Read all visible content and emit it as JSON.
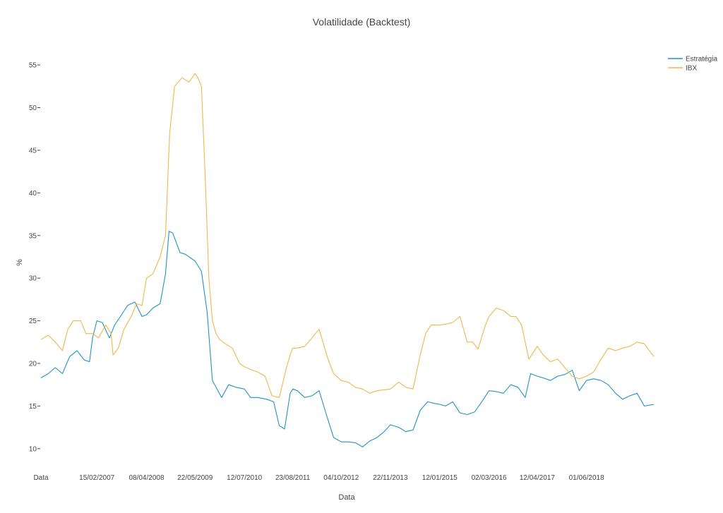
{
  "chart_data": {
    "type": "line",
    "title": "Volatilidade (Backtest)",
    "xlabel": "Data",
    "ylabel": "%",
    "ylim": [
      8,
      56
    ],
    "yticks": [
      10,
      15,
      20,
      25,
      30,
      35,
      40,
      45,
      50,
      55
    ],
    "ytick_labels": [
      "10",
      "15",
      "20",
      "25",
      "30",
      "35",
      "40",
      "45",
      "50",
      "55"
    ],
    "xlim": [
      "2005-11-01",
      "2019-12-20"
    ],
    "xticks": [
      "2005-11-01",
      "2007-02-15",
      "2008-04-08",
      "2009-05-22",
      "2010-07-12",
      "2011-08-23",
      "2012-10-04",
      "2013-11-22",
      "2015-01-12",
      "2016-03-02",
      "2017-04-12",
      "2018-06-01"
    ],
    "xtick_labels": [
      "Data",
      "15/02/2007",
      "08/04/2008",
      "22/05/2009",
      "12/07/2010",
      "23/08/2011",
      "04/10/2012",
      "22/11/2013",
      "12/01/2015",
      "02/03/2016",
      "12/04/2017",
      "01/06/2018"
    ],
    "legend_position": "top-right",
    "grid": false,
    "series": [
      {
        "name": "Estratégia",
        "color": "#1f94c4",
        "x": [
          "2005-11-01",
          "2006-01-01",
          "2006-03-01",
          "2006-05-01",
          "2006-07-01",
          "2006-09-01",
          "2006-11-01",
          "2006-12-15",
          "2007-01-10",
          "2007-02-15",
          "2007-04-01",
          "2007-06-01",
          "2007-07-15",
          "2007-09-01",
          "2007-11-01",
          "2008-01-01",
          "2008-03-01",
          "2008-04-08",
          "2008-06-01",
          "2008-08-01",
          "2008-09-15",
          "2008-10-15",
          "2008-11-15",
          "2009-01-15",
          "2009-03-01",
          "2009-05-22",
          "2009-07-15",
          "2009-09-01",
          "2009-10-15",
          "2009-11-15",
          "2010-01-01",
          "2010-03-01",
          "2010-05-01",
          "2010-07-12",
          "2010-09-01",
          "2010-11-01",
          "2011-01-15",
          "2011-03-15",
          "2011-05-01",
          "2011-06-15",
          "2011-08-01",
          "2011-08-23",
          "2011-10-01",
          "2011-12-01",
          "2012-02-01",
          "2012-04-01",
          "2012-06-01",
          "2012-08-01",
          "2012-10-04",
          "2012-12-01",
          "2013-02-01",
          "2013-04-01",
          "2013-06-01",
          "2013-08-01",
          "2013-10-01",
          "2013-11-22",
          "2014-02-01",
          "2014-04-01",
          "2014-06-01",
          "2014-08-01",
          "2014-10-01",
          "2014-12-01",
          "2015-01-12",
          "2015-03-01",
          "2015-05-01",
          "2015-07-01",
          "2015-09-01",
          "2015-11-01",
          "2016-01-01",
          "2016-03-02",
          "2016-05-01",
          "2016-07-01",
          "2016-09-01",
          "2016-11-01",
          "2017-01-01",
          "2017-02-15",
          "2017-04-12",
          "2017-06-01",
          "2017-08-01",
          "2017-10-01",
          "2017-12-01",
          "2018-02-01",
          "2018-04-01",
          "2018-06-01",
          "2018-08-01",
          "2018-10-01",
          "2018-12-01",
          "2019-02-01",
          "2019-04-01",
          "2019-06-01",
          "2019-08-01",
          "2019-10-01",
          "2019-12-20"
        ],
        "values": [
          18.3,
          18.8,
          19.5,
          18.8,
          20.8,
          21.5,
          20.4,
          20.2,
          23.0,
          25.0,
          24.8,
          23.0,
          24.5,
          25.5,
          26.8,
          27.2,
          25.5,
          25.7,
          26.5,
          27.0,
          30.5,
          35.5,
          35.3,
          33.0,
          32.8,
          32.0,
          30.8,
          26.0,
          18.0,
          17.2,
          16.0,
          17.5,
          17.2,
          17.0,
          16.0,
          16.0,
          15.8,
          15.5,
          12.7,
          12.3,
          16.5,
          17.0,
          16.8,
          16.0,
          16.2,
          16.8,
          14.0,
          11.3,
          10.8,
          10.8,
          10.7,
          10.2,
          10.9,
          11.3,
          12.0,
          12.8,
          12.5,
          12.0,
          12.2,
          14.5,
          15.5,
          15.3,
          15.2,
          15.0,
          15.5,
          14.2,
          14.0,
          14.3,
          15.5,
          16.8,
          16.7,
          16.5,
          17.5,
          17.2,
          16.0,
          18.8,
          18.5,
          18.3,
          18.0,
          18.5,
          18.7,
          19.2,
          16.8,
          18.0,
          18.2,
          18.0,
          17.5,
          16.5,
          15.8,
          16.2,
          16.5,
          15.0,
          15.2
        ]
      },
      {
        "name": "IBX",
        "color": "#f0b64c",
        "x": [
          "2005-11-01",
          "2006-01-01",
          "2006-03-01",
          "2006-05-01",
          "2006-06-15",
          "2006-08-01",
          "2006-10-01",
          "2006-11-15",
          "2007-01-10",
          "2007-03-01",
          "2007-05-01",
          "2007-06-15",
          "2007-07-01",
          "2007-08-15",
          "2007-10-01",
          "2007-12-01",
          "2008-01-15",
          "2008-03-01",
          "2008-04-08",
          "2008-06-01",
          "2008-08-01",
          "2008-09-15",
          "2008-10-20",
          "2008-12-01",
          "2009-02-01",
          "2009-04-01",
          "2009-05-22",
          "2009-06-15",
          "2009-07-15",
          "2009-08-15",
          "2009-09-15",
          "2009-10-15",
          "2009-11-15",
          "2009-12-15",
          "2010-02-01",
          "2010-04-01",
          "2010-06-01",
          "2010-07-12",
          "2010-09-01",
          "2010-11-01",
          "2011-01-01",
          "2011-03-01",
          "2011-05-01",
          "2011-07-01",
          "2011-08-01",
          "2011-08-23",
          "2011-10-01",
          "2011-12-01",
          "2012-02-01",
          "2012-04-01",
          "2012-06-15",
          "2012-08-01",
          "2012-10-04",
          "2012-12-01",
          "2013-02-01",
          "2013-04-01",
          "2013-06-01",
          "2013-08-01",
          "2013-11-22",
          "2014-02-01",
          "2014-04-01",
          "2014-06-01",
          "2014-08-01",
          "2014-09-15",
          "2014-11-01",
          "2015-01-12",
          "2015-03-01",
          "2015-05-01",
          "2015-07-01",
          "2015-09-01",
          "2015-10-15",
          "2015-12-01",
          "2016-02-01",
          "2016-03-02",
          "2016-05-01",
          "2016-07-01",
          "2016-09-01",
          "2016-10-15",
          "2016-12-01",
          "2017-02-01",
          "2017-04-12",
          "2017-06-01",
          "2017-08-01",
          "2017-10-01",
          "2017-12-01",
          "2018-02-01",
          "2018-04-01",
          "2018-06-01",
          "2018-08-01",
          "2018-10-01",
          "2018-12-01",
          "2019-02-01",
          "2019-04-01",
          "2019-06-01",
          "2019-08-01",
          "2019-10-01",
          "2019-12-20"
        ],
        "values": [
          22.8,
          23.3,
          22.5,
          21.5,
          24.0,
          25.0,
          25.0,
          23.5,
          23.5,
          23.0,
          24.5,
          23.5,
          21.0,
          21.8,
          24.0,
          25.5,
          27.0,
          26.8,
          30.0,
          30.5,
          32.5,
          35.0,
          47.0,
          52.5,
          53.5,
          53.0,
          54.0,
          53.5,
          52.5,
          42.0,
          30.0,
          25.0,
          23.5,
          22.8,
          22.3,
          21.8,
          20.0,
          19.6,
          19.3,
          19.0,
          18.5,
          16.2,
          16.0,
          19.5,
          21.0,
          21.8,
          21.8,
          22.0,
          23.0,
          24.0,
          20.5,
          18.8,
          18.0,
          17.8,
          17.2,
          17.0,
          16.5,
          16.8,
          17.0,
          17.8,
          17.2,
          17.0,
          21.0,
          23.5,
          24.5,
          24.5,
          24.6,
          24.8,
          25.5,
          22.5,
          22.5,
          21.7,
          24.5,
          25.5,
          26.5,
          26.2,
          25.5,
          25.5,
          24.5,
          20.5,
          22.0,
          21.0,
          20.2,
          20.5,
          19.5,
          18.5,
          18.2,
          18.5,
          19.0,
          20.5,
          21.8,
          21.5,
          21.8,
          22.0,
          22.5,
          22.3,
          20.8
        ]
      }
    ]
  }
}
